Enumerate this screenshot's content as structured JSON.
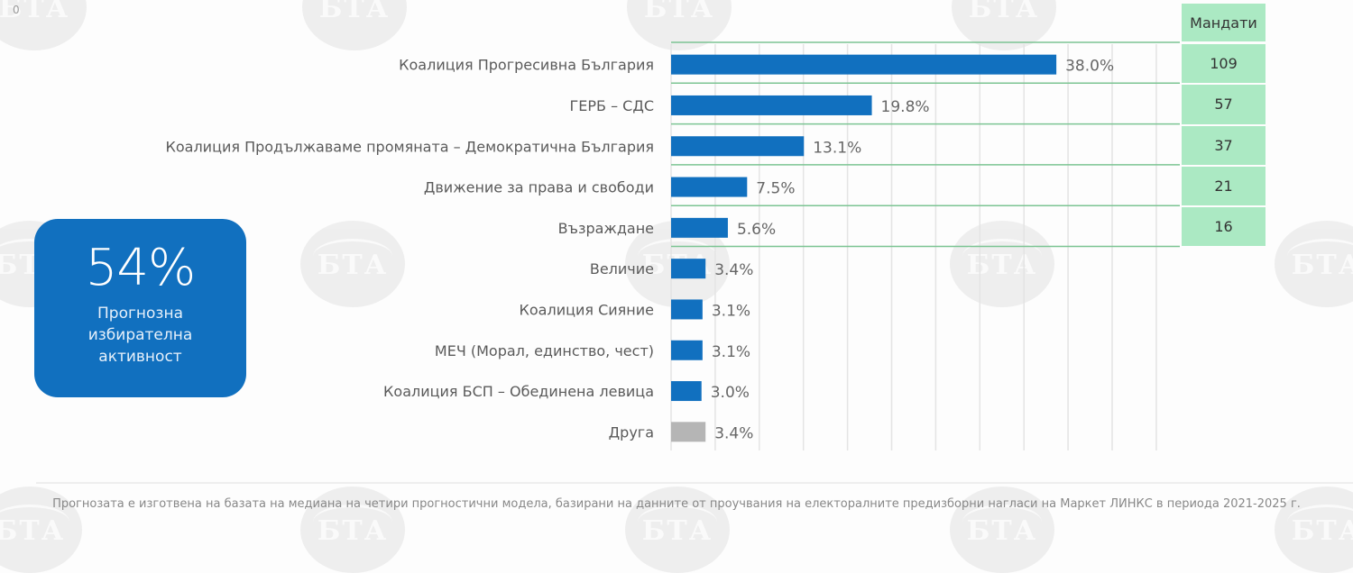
{
  "chart_data": {
    "type": "bar",
    "orientation": "horizontal",
    "title": "",
    "xlabel": "",
    "ylabel": "",
    "xlim": [
      0,
      50
    ],
    "grid": true,
    "categories": [
      "Коалиция Прогресивна България",
      "ГЕРБ – СДС",
      "Коалиция Продължаваме промяната – Демократична България",
      "Движение за права и свободи",
      "Възраждане",
      "Величие",
      "Коалиция Сияние",
      "МЕЧ (Морал, единство, чест)",
      "Коалиция БСП – Обединена левица",
      "Друга"
    ],
    "values": [
      38.0,
      19.8,
      13.1,
      7.5,
      5.6,
      3.4,
      3.1,
      3.1,
      3.0,
      3.4
    ],
    "value_labels": [
      "38.0%",
      "19.8%",
      "13.1%",
      "7.5%",
      "5.6%",
      "3.4%",
      "3.1%",
      "3.1%",
      "3.0%",
      "3.4%"
    ],
    "bar_colors": [
      "#1170bf",
      "#1170bf",
      "#1170bf",
      "#1170bf",
      "#1170bf",
      "#1170bf",
      "#1170bf",
      "#1170bf",
      "#1170bf",
      "#b5b5b5"
    ],
    "seats": {
      "header": "Мандати",
      "values": [
        "109",
        "57",
        "37",
        "21",
        "16"
      ]
    }
  },
  "turnout": {
    "value": "54%",
    "label_lines": [
      "Прогнозна",
      "избирателна",
      "активност"
    ]
  },
  "footer": "Прогнозата е изготвена на базата на медиана на четири прогностични модела, базирани на данните от проучвания на електоралните предизборни нагласи  на Маркет ЛИНКС в периода 2021-2025 г.",
  "corner_mark": "0",
  "watermark": "БТА",
  "colors": {
    "bar": "#1170bf",
    "other_bar": "#b5b5b5",
    "seats_bg": "#abe9c3",
    "row_line": "#7cc493",
    "grid": "#e4e4e4"
  }
}
